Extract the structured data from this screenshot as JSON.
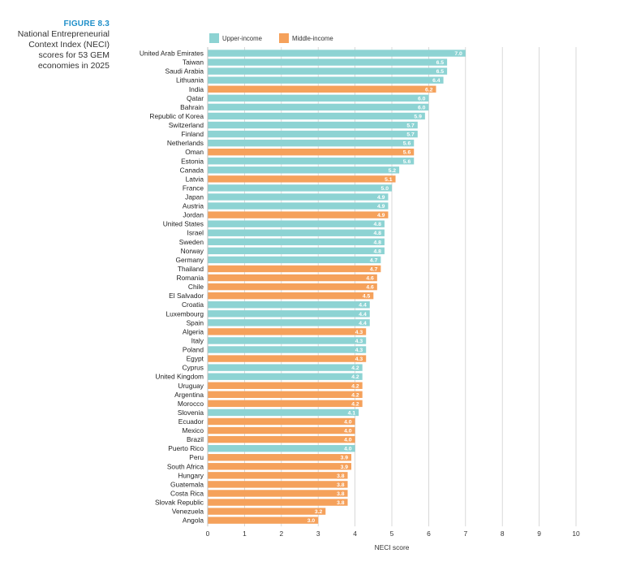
{
  "figure": {
    "label": "FIGURE 8.3",
    "caption": "National Entrepreneurial Context Index (NECI) scores for 53 GEM economies in 2025"
  },
  "chart_data": {
    "type": "bar",
    "orientation": "horizontal",
    "title": "National Entrepreneurial Context Index (NECI) scores for 53 GEM economies in 2025",
    "xlabel": "NECI score",
    "ylabel": "",
    "xlim": [
      0,
      10
    ],
    "xticks": [
      "0",
      "1",
      "2",
      "3",
      "4",
      "5",
      "6",
      "7",
      "8",
      "9",
      "10"
    ],
    "grid": true,
    "legend_position": "top",
    "colors": {
      "Upper-income": "#8dd3d3",
      "Middle-income": "#f5a15b"
    },
    "legend": [
      {
        "name": "Upper-income",
        "color": "#8dd3d3"
      },
      {
        "name": "Middle-income",
        "color": "#f5a15b"
      }
    ],
    "categories": [
      "United Arab Emirates",
      "Taiwan",
      "Saudi Arabia",
      "Lithuania",
      "India",
      "Qatar",
      "Bahrain",
      "Republic of Korea",
      "Switzerland",
      "Finland",
      "Netherlands",
      "Oman",
      "Estonia",
      "Canada",
      "Latvia",
      "France",
      "Japan",
      "Austria",
      "Jordan",
      "United States",
      "Israel",
      "Sweden",
      "Norway",
      "Germany",
      "Thailand",
      "Romania",
      "Chile",
      "El Salvador",
      "Croatia",
      "Luxembourg",
      "Spain",
      "Algeria",
      "Italy",
      "Poland",
      "Egypt",
      "Cyprus",
      "United Kingdom",
      "Uruguay",
      "Argentina",
      "Morocco",
      "Slovenia",
      "Ecuador",
      "Mexico",
      "Brazil",
      "Puerto Rico",
      "Peru",
      "South Africa",
      "Hungary",
      "Guatemala",
      "Costa Rica",
      "Slovak Republic",
      "Venezuela",
      "Angola"
    ],
    "values": [
      7.0,
      6.5,
      6.5,
      6.4,
      6.2,
      6.0,
      6.0,
      5.9,
      5.7,
      5.7,
      5.6,
      5.6,
      5.6,
      5.2,
      5.1,
      5.0,
      4.9,
      4.9,
      4.9,
      4.8,
      4.8,
      4.8,
      4.8,
      4.7,
      4.7,
      4.6,
      4.6,
      4.5,
      4.4,
      4.4,
      4.4,
      4.3,
      4.3,
      4.3,
      4.3,
      4.2,
      4.2,
      4.2,
      4.2,
      4.2,
      4.1,
      4.0,
      4.0,
      4.0,
      4.0,
      3.9,
      3.9,
      3.8,
      3.8,
      3.8,
      3.8,
      3.2,
      3.0
    ],
    "labels": [
      "7.0",
      "6.5",
      "6.5",
      "6.4",
      "6.2",
      "6.0",
      "6.0",
      "5.9",
      "5.7",
      "5.7",
      "5.6",
      "5.6",
      "5.6",
      "5.2",
      "5.1",
      "5.0",
      "4.9",
      "4.9",
      "4.9",
      "4.8",
      "4.8",
      "4.8",
      "4.8",
      "4.7",
      "4.7",
      "4.6",
      "4.6",
      "4.5",
      "4.4",
      "4.4",
      "4.4",
      "4.3",
      "4.3",
      "4.3",
      "4.3",
      "4.2",
      "4.2",
      "4.2",
      "4.2",
      "4.2",
      "4.1",
      "4.0",
      "4.0",
      "4.0",
      "4.0",
      "3.9",
      "3.9",
      "3.8",
      "3.8",
      "3.8",
      "3.8",
      "3.2",
      "3.0"
    ],
    "groups": [
      "Upper-income",
      "Upper-income",
      "Upper-income",
      "Upper-income",
      "Middle-income",
      "Upper-income",
      "Upper-income",
      "Upper-income",
      "Upper-income",
      "Upper-income",
      "Upper-income",
      "Middle-income",
      "Upper-income",
      "Upper-income",
      "Middle-income",
      "Upper-income",
      "Upper-income",
      "Upper-income",
      "Middle-income",
      "Upper-income",
      "Upper-income",
      "Upper-income",
      "Upper-income",
      "Upper-income",
      "Middle-income",
      "Middle-income",
      "Middle-income",
      "Middle-income",
      "Upper-income",
      "Upper-income",
      "Upper-income",
      "Middle-income",
      "Upper-income",
      "Upper-income",
      "Middle-income",
      "Upper-income",
      "Upper-income",
      "Middle-income",
      "Middle-income",
      "Middle-income",
      "Upper-income",
      "Middle-income",
      "Middle-income",
      "Middle-income",
      "Upper-income",
      "Middle-income",
      "Middle-income",
      "Middle-income",
      "Middle-income",
      "Middle-income",
      "Middle-income",
      "Middle-income",
      "Middle-income"
    ]
  }
}
